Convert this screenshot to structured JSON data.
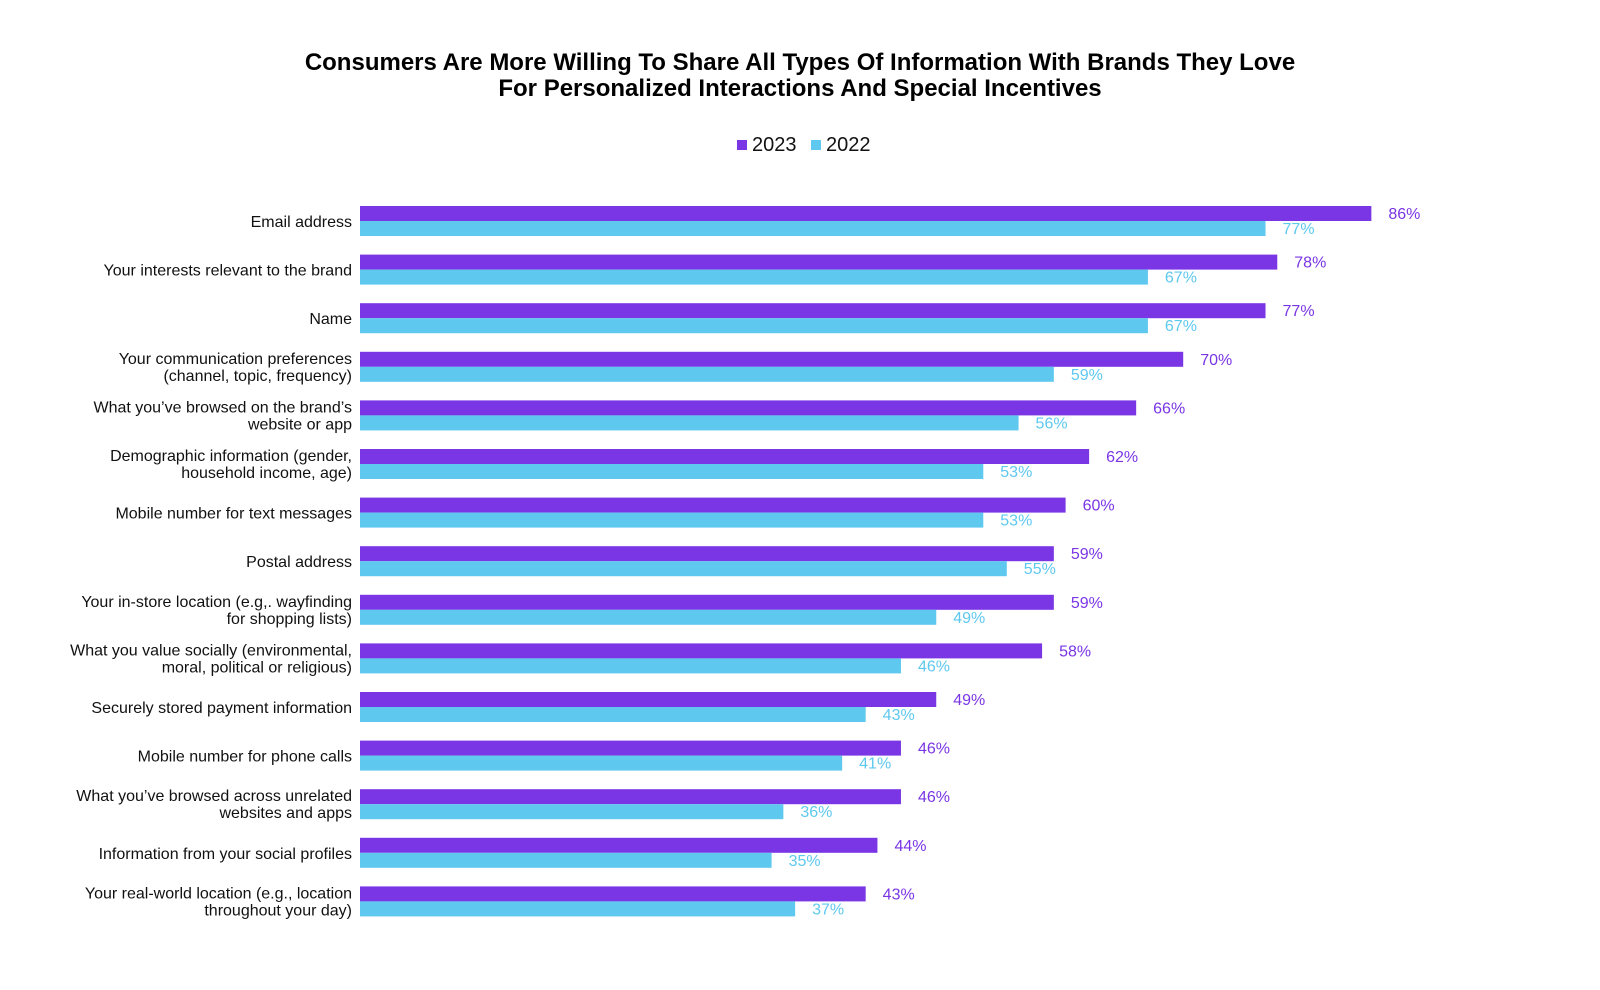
{
  "chart_data": {
    "type": "bar",
    "orientation": "horizontal",
    "title_lines": [
      "Consumers Are More Willing To Share All Types Of Information With Brands They Love",
      "For Personalized Interactions And Special Incentives"
    ],
    "legend_position": "top-center",
    "grid": false,
    "xlim": [
      0,
      100
    ],
    "categories": [
      [
        "Email address"
      ],
      [
        "Your interests relevant to the brand"
      ],
      [
        "Name"
      ],
      [
        "Your communication preferences",
        "(channel, topic, frequency)"
      ],
      [
        "What you’ve browsed on the brand’s",
        "website or app"
      ],
      [
        "Demographic information (gender,",
        "household income, age)"
      ],
      [
        "Mobile number for text messages"
      ],
      [
        "Postal address"
      ],
      [
        "Your in-store location (e.g,. wayfinding",
        "for shopping lists)"
      ],
      [
        "What you value socially (environmental,",
        "moral, political or religious)"
      ],
      [
        "Securely stored payment information"
      ],
      [
        "Mobile number for phone calls"
      ],
      [
        "What you’ve browsed across unrelated",
        "websites and apps"
      ],
      [
        "Information from your social profiles"
      ],
      [
        "Your real-world location (e.g., location",
        "throughout your day)"
      ]
    ],
    "series": [
      {
        "name": "2023",
        "color": "#7a35e4",
        "label_color": "#7a35e4",
        "values": [
          86,
          78,
          77,
          70,
          66,
          62,
          60,
          59,
          59,
          58,
          49,
          46,
          46,
          44,
          43
        ],
        "labels": [
          "86%",
          "78%",
          "77%",
          "70%",
          "66%",
          "62%",
          "60%",
          "59%",
          "59%",
          "58%",
          "49%",
          "46%",
          "46%",
          "44%",
          "43%"
        ]
      },
      {
        "name": "2022",
        "color": "#5ec8ef",
        "label_color": "#5ec8ef",
        "values": [
          77,
          67,
          67,
          59,
          56,
          53,
          53,
          55,
          49,
          46,
          43,
          41,
          36,
          35,
          37
        ],
        "labels": [
          "77%",
          "67%",
          "67%",
          "59%",
          "56%",
          "53%",
          "53%",
          "55%",
          "49%",
          "46%",
          "43%",
          "41%",
          "36%",
          "35%",
          "37%"
        ]
      }
    ]
  }
}
